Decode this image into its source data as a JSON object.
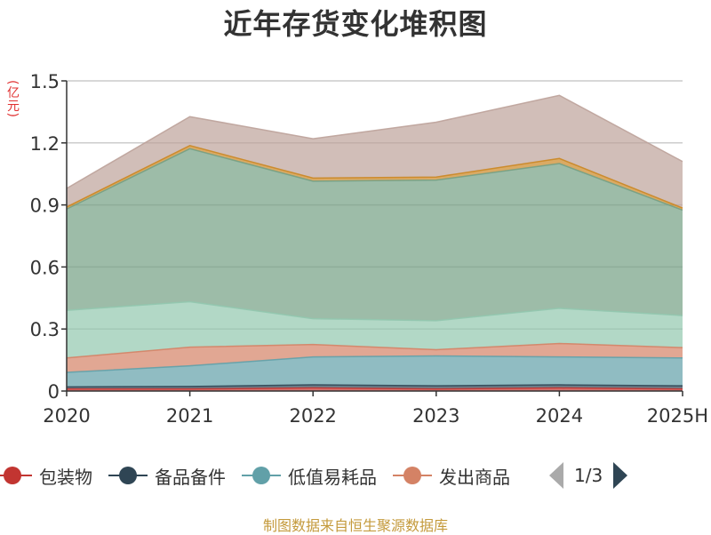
{
  "chart_data": {
    "type": "area",
    "title": "近年存货变化堆积图",
    "unit_label": "(亿元)",
    "categories": [
      "2020",
      "2021",
      "2022",
      "2023",
      "2024",
      "2025H"
    ],
    "ylim": [
      0,
      1.5
    ],
    "yticks": [
      "0",
      "0.3",
      "0.6",
      "0.9",
      "1.2",
      "1.5"
    ],
    "stacked": true,
    "grid": true,
    "series": [
      {
        "name": "包装物",
        "color": "#c23531",
        "values": [
          0.01,
          0.01,
          0.015,
          0.01,
          0.015,
          0.01
        ]
      },
      {
        "name": "备品备件",
        "color": "#2f4554",
        "values": [
          0.01,
          0.012,
          0.015,
          0.015,
          0.015,
          0.015
        ]
      },
      {
        "name": "低值易耗品",
        "color": "#61a0a8",
        "values": [
          0.07,
          0.1,
          0.135,
          0.145,
          0.135,
          0.135
        ]
      },
      {
        "name": "发出商品",
        "color": "#d48265",
        "values": [
          0.07,
          0.09,
          0.06,
          0.03,
          0.065,
          0.05
        ]
      },
      {
        "name": "",
        "color": "#91c7ae",
        "values": [
          0.23,
          0.22,
          0.125,
          0.14,
          0.17,
          0.155
        ]
      },
      {
        "name": "",
        "color": "#749f83",
        "values": [
          0.49,
          0.74,
          0.665,
          0.68,
          0.7,
          0.51
        ]
      },
      {
        "name": "",
        "color": "#ca8622",
        "values": [
          0.01,
          0.015,
          0.015,
          0.015,
          0.025,
          0.01
        ]
      },
      {
        "name": "",
        "color": "#bda29a",
        "values": [
          0.09,
          0.14,
          0.19,
          0.265,
          0.305,
          0.225
        ]
      }
    ],
    "legend_position": "bottom"
  },
  "legend": {
    "items": [
      {
        "label": "包装物",
        "color": "#c23531"
      },
      {
        "label": "备品备件",
        "color": "#2f4554"
      },
      {
        "label": "低值易耗品",
        "color": "#61a0a8"
      },
      {
        "label": "发出商品",
        "color": "#d48265"
      }
    ],
    "page_indicator": "1/3"
  },
  "footer": {
    "source": "制图数据来自恒生聚源数据库"
  }
}
